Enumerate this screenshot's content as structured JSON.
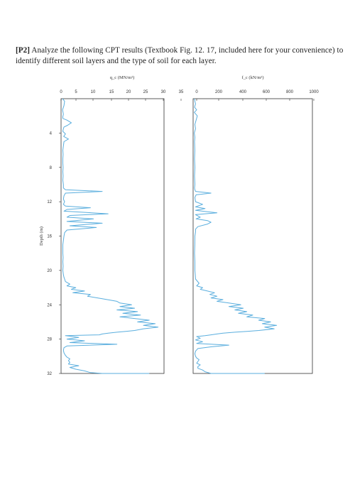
{
  "problem": {
    "label": "[P2]",
    "text": " Analyze the following CPT results (Textbook Fig. 12. 17, included here for your convenience) to identify different soil layers and the type of soil for each layer."
  },
  "colors": {
    "trace": "#5aaede",
    "axis": "#333333"
  },
  "chart_data": [
    {
      "type": "line",
      "xlabel": "q_c (MN/m²)",
      "ylabel": "Depth (m)",
      "xlim": [
        0,
        35
      ],
      "ylim": [
        32,
        0
      ],
      "xticks": [
        "0",
        "5",
        "10",
        "15",
        "20",
        "25",
        "30",
        "35"
      ],
      "yticks": [
        "4",
        "8",
        "12",
        "16",
        "20",
        "24",
        "28",
        "32"
      ],
      "series": [
        {
          "x": [
            0.5,
            1.2,
            1.0,
            0.5,
            0.8,
            0.6,
            0.6,
            2.0,
            3.5,
            2.2,
            1.0,
            0.8,
            0.6,
            1.5,
            0.9,
            2.5,
            1.0,
            0.8,
            0.6,
            0.7,
            0.6,
            0.6,
            0.7,
            0.6,
            0.7,
            0.6,
            0.8,
            0.8,
            1.5,
            14.0,
            1.5,
            1.0,
            0.8,
            1.2,
            0.8,
            1.5,
            10.0,
            2.0,
            1.0,
            16.0,
            3.0,
            2.0,
            11.0,
            2.0,
            14.0,
            3.0,
            12.0,
            2.0,
            1.2,
            1.0,
            0.8,
            0.6,
            0.6,
            0.6,
            0.7,
            0.6,
            0.7,
            0.6,
            0.8,
            1.0,
            1.2,
            1.5,
            3.0,
            2.0,
            5.0,
            3.5,
            8.0,
            4.0,
            10.0,
            9.0,
            14.0,
            19.0,
            20.0,
            24.0,
            20.0,
            25.0,
            19.0,
            26.0,
            21.0,
            27.0,
            20.0,
            25.0,
            30.0,
            26.0,
            32.0,
            28.0,
            33.0,
            28.0,
            25.0,
            22.0,
            19.0,
            16.0,
            14.0,
            13.0,
            1.5,
            6.0,
            2.0,
            8.0,
            3.0,
            19.0,
            2.0,
            1.0,
            0.8,
            1.0,
            1.5,
            2.0,
            3.0,
            2.5,
            3.0,
            2.5,
            6.0,
            3.0,
            5.0,
            8.0,
            10.0,
            14.0,
            20.0,
            30.0
          ],
          "y": [
            0.0,
            0.3,
            0.8,
            1.3,
            1.8,
            2.1,
            2.3,
            2.5,
            2.8,
            3.1,
            3.3,
            3.5,
            3.8,
            4.1,
            4.4,
            4.7,
            5.0,
            5.5,
            6.0,
            6.5,
            7.0,
            7.5,
            8.0,
            8.5,
            9.0,
            9.5,
            10.0,
            10.4,
            10.6,
            10.8,
            11.0,
            11.3,
            11.7,
            12.0,
            12.3,
            12.5,
            12.7,
            12.9,
            13.1,
            13.4,
            13.6,
            13.8,
            14.0,
            14.3,
            14.5,
            14.8,
            15.0,
            15.3,
            15.6,
            16.0,
            16.5,
            17.0,
            17.5,
            18.0,
            18.5,
            19.0,
            19.5,
            20.0,
            20.5,
            20.8,
            21.0,
            21.3,
            21.6,
            21.8,
            22.0,
            22.2,
            22.4,
            22.6,
            22.8,
            23.0,
            23.3,
            23.6,
            23.8,
            24.0,
            24.2,
            24.4,
            24.6,
            24.8,
            25.0,
            25.2,
            25.4,
            25.6,
            25.8,
            26.0,
            26.2,
            26.4,
            26.6,
            26.8,
            27.0,
            27.1,
            27.2,
            27.3,
            27.4,
            27.5,
            27.6,
            27.8,
            28.0,
            28.2,
            28.4,
            28.6,
            28.8,
            29.0,
            29.3,
            29.6,
            29.9,
            30.1,
            30.3,
            30.5,
            30.7,
            30.9,
            31.1,
            31.3,
            31.5,
            31.7,
            31.9,
            32.0,
            32.0,
            32.0
          ]
        }
      ]
    },
    {
      "type": "line",
      "xlabel": "f_c (kN/m²)",
      "ylabel": "",
      "xlim": [
        0,
        1000
      ],
      "ylim": [
        32,
        0
      ],
      "xticks": [
        "0",
        "200",
        "400",
        "600",
        "800",
        "1000"
      ],
      "yticks": [],
      "series": [
        {
          "x": [
            10,
            15,
            20,
            12,
            30,
            10,
            35,
            25,
            15,
            20,
            10,
            15,
            12,
            14,
            12,
            15,
            12,
            15,
            12,
            15,
            20,
            150,
            25,
            15,
            20,
            80,
            20,
            100,
            20,
            200,
            20,
            60,
            25,
            120,
            150,
            120,
            40,
            20,
            20,
            15,
            14,
            12,
            15,
            15,
            18,
            20,
            50,
            30,
            80,
            60,
            120,
            180,
            140,
            200,
            150,
            250,
            200,
            300,
            400,
            300,
            420,
            350,
            450,
            380,
            500,
            450,
            600,
            550,
            650,
            580,
            700,
            600,
            680,
            550,
            450,
            350,
            250,
            200,
            150,
            100,
            30,
            60,
            20,
            80,
            30,
            300,
            150,
            40,
            20,
            15,
            20,
            30,
            50,
            40,
            30,
            60,
            40,
            40,
            80,
            100,
            150,
            200,
            300,
            500,
            600
          ],
          "y": [
            0.0,
            0.3,
            0.6,
            1.0,
            1.3,
            1.6,
            2.0,
            2.5,
            3.0,
            3.5,
            4.0,
            4.5,
            5.0,
            6.0,
            7.0,
            8.0,
            9.0,
            10.0,
            10.4,
            10.6,
            10.8,
            11.0,
            11.2,
            11.5,
            12.0,
            12.3,
            12.6,
            12.8,
            13.0,
            13.3,
            13.5,
            13.8,
            14.0,
            14.2,
            14.4,
            14.6,
            14.9,
            15.2,
            15.5,
            16.0,
            17.0,
            18.0,
            19.0,
            20.0,
            20.5,
            21.0,
            21.5,
            21.8,
            22.0,
            22.2,
            22.4,
            22.6,
            22.8,
            23.0,
            23.2,
            23.4,
            23.6,
            23.8,
            24.0,
            24.2,
            24.4,
            24.6,
            24.8,
            25.0,
            25.2,
            25.4,
            25.6,
            25.8,
            26.0,
            26.2,
            26.4,
            26.6,
            26.8,
            27.0,
            27.1,
            27.2,
            27.3,
            27.4,
            27.5,
            27.6,
            27.7,
            27.9,
            28.1,
            28.3,
            28.5,
            28.7,
            28.9,
            29.1,
            29.4,
            29.7,
            30.0,
            30.2,
            30.4,
            30.6,
            30.8,
            31.0,
            31.2,
            31.4,
            31.6,
            31.8,
            32.0,
            32.0,
            32.0,
            32.0,
            32.0
          ]
        }
      ]
    }
  ]
}
